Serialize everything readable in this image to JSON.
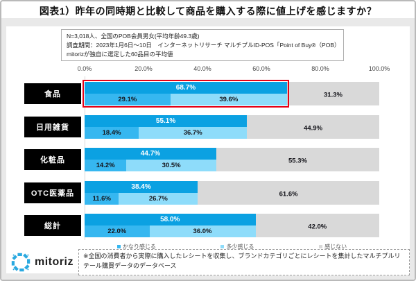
{
  "header": {
    "title": "図表1）昨年の同時期と比較して商品を購入する際に値上げを感じますか？"
  },
  "note": {
    "line1": "N=3,018人、全国のPOB会員男女(平均年齢49.3歳)",
    "line2": "調査期間：2023年1月6日～10日　インターネットリサーチ マルチプルID-POS「Point of Buy®（POB）※」",
    "line3": "mitorizが独自に選定した60品目の平均値"
  },
  "chart_data": {
    "type": "bar",
    "orientation": "horizontal",
    "categories": [
      "食品",
      "日用雑貨",
      "化粧品",
      "OTC医薬品",
      "総計"
    ],
    "series": [
      {
        "name": "かなり感じる",
        "color": "#36b7f0",
        "values": [
          29.1,
          18.4,
          14.2,
          11.6,
          22.0
        ]
      },
      {
        "name": "多少感じる",
        "color": "#8edcfa",
        "values": [
          39.6,
          36.7,
          30.5,
          26.7,
          36.0
        ]
      },
      {
        "name": "感じない",
        "color": "#d9d9d9",
        "values": [
          31.3,
          44.9,
          55.3,
          61.6,
          42.0
        ]
      }
    ],
    "totals": [
      68.7,
      55.1,
      44.7,
      38.4,
      58.0
    ],
    "total_bar_color": "#0ba1e2",
    "x_ticks": [
      "0.0%",
      "20.0%",
      "40.0%",
      "60.0%",
      "80.0%",
      "100.0%"
    ],
    "xlim": [
      0,
      100
    ],
    "grid": false,
    "legend_position": "bottom",
    "highlight_row": 0,
    "highlight_color": "#e60014"
  },
  "colors": {
    "accent_blue": "#2aa9e0",
    "category_label_bg": "#000000",
    "frame_gray": "#e9e9e9"
  },
  "footer": {
    "logo_text": "mitoriz",
    "note": "※全国の消費者から実際に購入したレシートを収集し、ブランドカテゴリごとにレシートを集計したマルチプルリテール購買データのデータベース"
  }
}
